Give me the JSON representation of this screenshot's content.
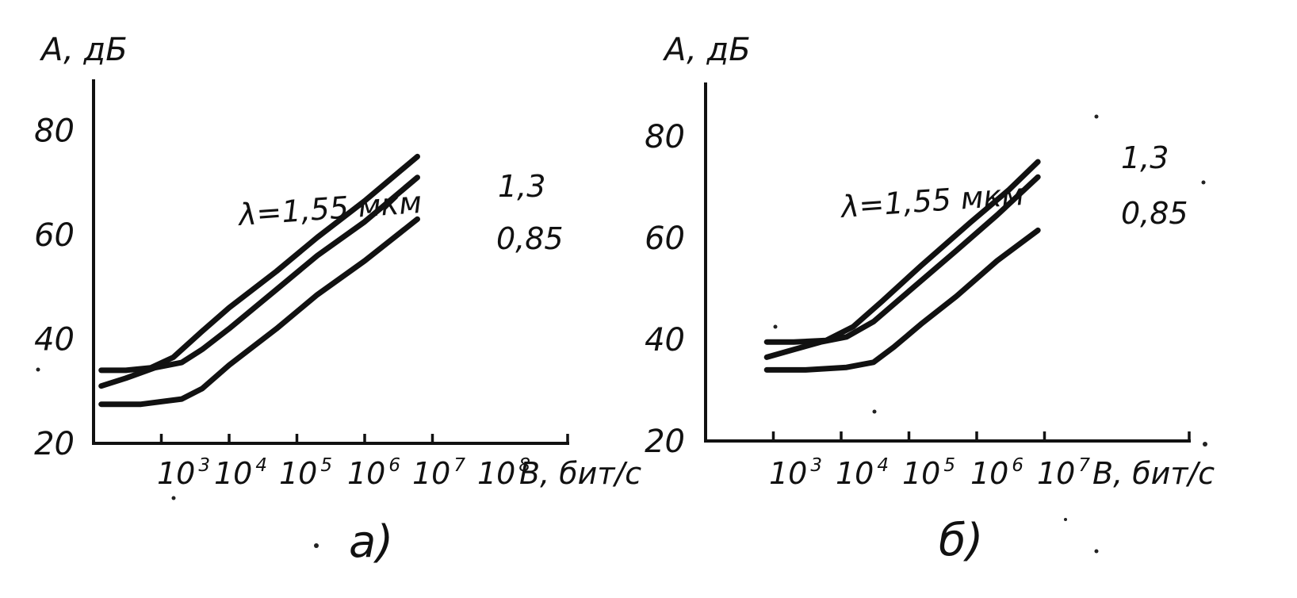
{
  "chart_data": [
    {
      "type": "line",
      "caption": "а)",
      "ylabel": "A, дБ",
      "xlabel": "B, бит/с",
      "x_scale": "log",
      "xlim": [
        1000,
        100000000
      ],
      "ylim": [
        20,
        90
      ],
      "y_ticks": [
        20,
        40,
        60,
        80
      ],
      "x_tick_labels": [
        {
          "base": "10",
          "exp": "3",
          "value": 1000
        },
        {
          "base": "10",
          "exp": "4",
          "value": 10000
        },
        {
          "base": "10",
          "exp": "5",
          "value": 100000
        },
        {
          "base": "10",
          "exp": "6",
          "value": 1000000
        },
        {
          "base": "10",
          "exp": "7",
          "value": 10000000
        },
        {
          "base": "10",
          "exp": "8",
          "value": 100000000
        }
      ],
      "annotation": "λ=1,55 мкм",
      "series": [
        {
          "name": "1,55",
          "label": "",
          "x": [
            1300,
            3000,
            7000,
            15000,
            40000,
            100000,
            500000,
            2000000,
            10000000,
            60000000
          ],
          "y": [
            34,
            34,
            34.5,
            36.5,
            41.5,
            46,
            53,
            59.5,
            66.5,
            75
          ]
        },
        {
          "name": "1,3",
          "label": "1,3",
          "x": [
            1300,
            3000,
            8000,
            20000,
            40000,
            100000,
            500000,
            2000000,
            10000000,
            60000000
          ],
          "y": [
            31,
            32.5,
            34.5,
            35.5,
            38,
            42,
            49.5,
            56,
            62.5,
            71
          ]
        },
        {
          "name": "0,85",
          "label": "0,85",
          "x": [
            1300,
            5000,
            20000,
            40000,
            100000,
            500000,
            2000000,
            10000000,
            60000000
          ],
          "y": [
            27.5,
            27.5,
            28.5,
            30.5,
            35,
            42,
            48.5,
            55,
            63
          ]
        }
      ]
    },
    {
      "type": "line",
      "caption": "б)",
      "ylabel": "A, дБ",
      "xlabel": "B, бит/с",
      "x_scale": "log",
      "xlim": [
        100,
        10000000
      ],
      "ylim": [
        20,
        90
      ],
      "y_ticks": [
        20,
        40,
        60,
        80
      ],
      "x_tick_labels": [
        {
          "base": "10",
          "exp": "3",
          "value": 1000
        },
        {
          "base": "10",
          "exp": "4",
          "value": 10000
        },
        {
          "base": "10",
          "exp": "5",
          "value": 100000
        },
        {
          "base": "10",
          "exp": "6",
          "value": 1000000
        },
        {
          "base": "10",
          "exp": "7",
          "value": 10000000
        }
      ],
      "annotation": "λ=1,55 мкм",
      "series": [
        {
          "name": "1,55",
          "label": "",
          "x": [
            800,
            2000,
            6000,
            15000,
            40000,
            150000,
            800000,
            3000000,
            8000000
          ],
          "y": [
            39.5,
            39.5,
            39.8,
            42.5,
            47.5,
            54.5,
            63,
            69.5,
            75
          ]
        },
        {
          "name": "1,3",
          "label": "1,3",
          "x": [
            800,
            2000,
            5000,
            12000,
            30000,
            100000,
            500000,
            2000000,
            8000000
          ],
          "y": [
            36.5,
            38,
            39.5,
            40.5,
            43.5,
            49.5,
            57.5,
            64.5,
            72
          ]
        },
        {
          "name": "0,85",
          "label": "0,85",
          "x": [
            800,
            3000,
            12000,
            30000,
            60000,
            150000,
            500000,
            2000000,
            8000000
          ],
          "y": [
            34,
            34,
            34.5,
            35.5,
            38.5,
            43,
            48.5,
            55.5,
            61.5
          ]
        }
      ]
    }
  ]
}
